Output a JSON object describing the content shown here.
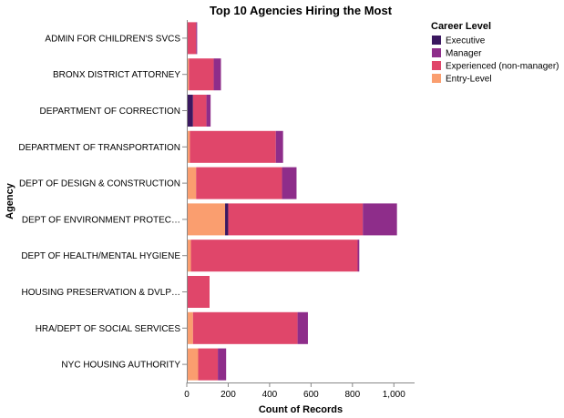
{
  "chart_data": {
    "type": "bar",
    "orientation": "horizontal",
    "stacked": true,
    "title": "Top 10 Agencies Hiring the Most",
    "xlabel": "Count of Records",
    "ylabel": "Agency",
    "xlim": [
      0,
      1100
    ],
    "x_ticks": [
      0,
      200,
      400,
      600,
      800,
      1000
    ],
    "x_tick_labels": [
      "0",
      "200",
      "400",
      "600",
      "800",
      "1,000"
    ],
    "grid": false,
    "legend_placement": "top-right",
    "categories": [
      "ADMIN FOR CHILDREN'S SVCS",
      "BRONX DISTRICT ATTORNEY",
      "DEPARTMENT OF CORRECTION",
      "DEPARTMENT OF TRANSPORTATION",
      "DEPT OF DESIGN & CONSTRUCTION",
      "DEPT OF ENVIRONMENT PROTEC…",
      "DEPT OF HEALTH/MENTAL HYGIENE",
      "HOUSING PRESERVATION & DVLP…",
      "HRA/DEPT OF SOCIAL SERVICES",
      "NYC HOUSING AUTHORITY"
    ],
    "legend_title": "Career Level",
    "series": [
      {
        "name": "Entry-Level",
        "color": "#fa9e6f",
        "values": [
          0,
          10,
          0,
          15,
          45,
          185,
          20,
          0,
          30,
          55
        ]
      },
      {
        "name": "Executive",
        "color": "#3b1860",
        "values": [
          0,
          0,
          30,
          0,
          0,
          15,
          0,
          0,
          0,
          0
        ]
      },
      {
        "name": "Experienced (non-manager)",
        "color": "#e0466a",
        "values": [
          45,
          120,
          65,
          415,
          415,
          650,
          805,
          110,
          505,
          95
        ]
      },
      {
        "name": "Manager",
        "color": "#8e2d8a",
        "values": [
          5,
          35,
          20,
          35,
          70,
          165,
          8,
          0,
          50,
          40
        ]
      }
    ],
    "legend_entries": [
      {
        "name": "Executive",
        "color": "#3b1860"
      },
      {
        "name": "Manager",
        "color": "#8e2d8a"
      },
      {
        "name": "Experienced (non-manager)",
        "color": "#e0466a"
      },
      {
        "name": "Entry-Level",
        "color": "#fa9e6f"
      }
    ]
  }
}
